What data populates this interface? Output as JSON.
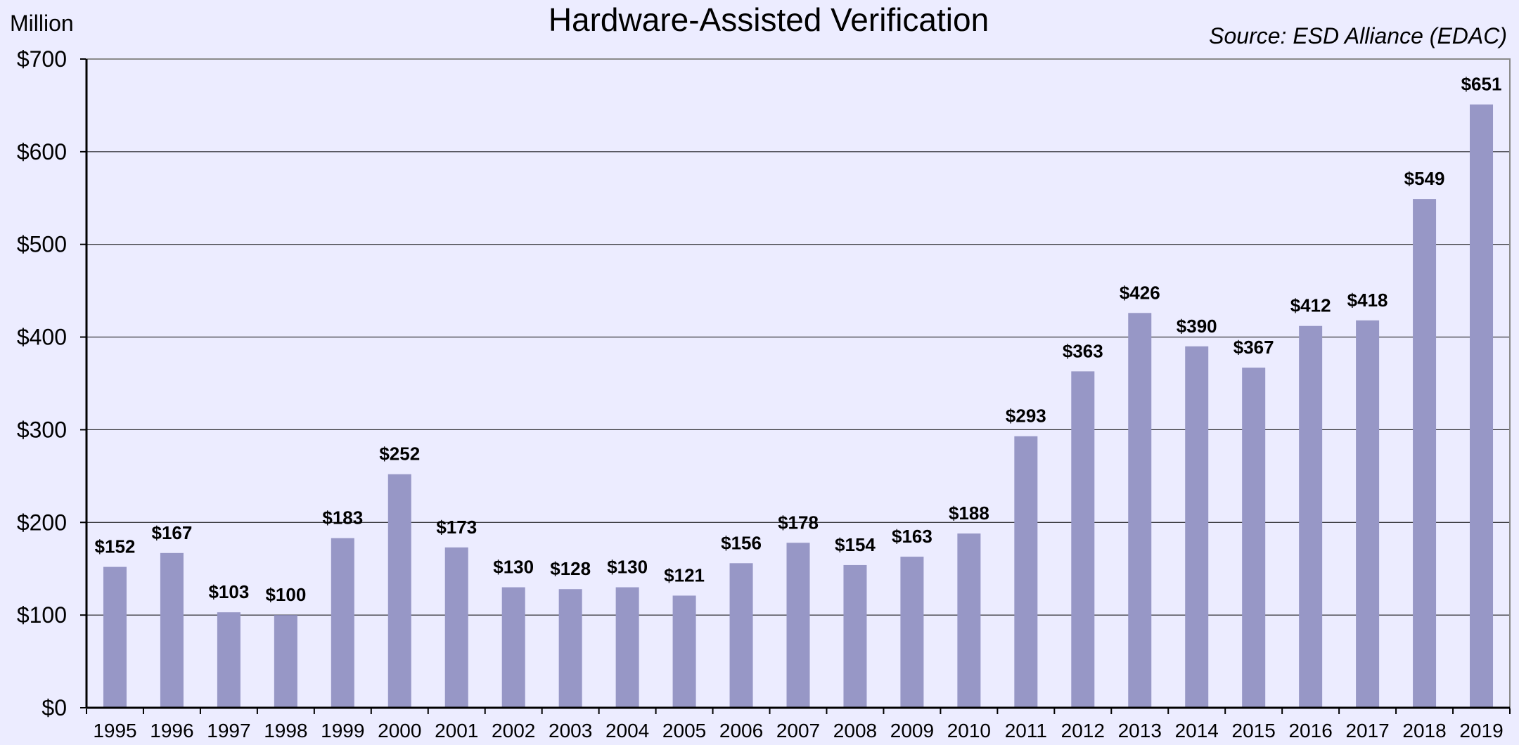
{
  "chart_data": {
    "type": "bar",
    "title": "Hardware-Assisted Verification",
    "source": "Source: ESD Alliance (EDAC)",
    "unit_label": "Million",
    "xlabel": "",
    "ylabel": "",
    "ylim": [
      0,
      700
    ],
    "y_ticks": [
      0,
      100,
      200,
      300,
      400,
      500,
      600,
      700
    ],
    "y_tick_labels": [
      "$0",
      "$100",
      "$200",
      "$300",
      "$400",
      "$500",
      "$600",
      "$700"
    ],
    "grid": true,
    "legend": "none",
    "bar_color": "#9797c6",
    "categories": [
      "1995",
      "1996",
      "1997",
      "1998",
      "1999",
      "2000",
      "2001",
      "2002",
      "2003",
      "2004",
      "2005",
      "2006",
      "2007",
      "2008",
      "2009",
      "2010",
      "2011",
      "2012",
      "2013",
      "2014",
      "2015",
      "2016",
      "2017",
      "2018",
      "2019"
    ],
    "values": [
      152,
      167,
      103,
      100,
      183,
      252,
      173,
      130,
      128,
      130,
      121,
      156,
      178,
      154,
      163,
      188,
      293,
      363,
      426,
      390,
      367,
      412,
      418,
      549,
      651
    ],
    "data_labels": [
      "$152",
      "$167",
      "$103",
      "$100",
      "$183",
      "$252",
      "$173",
      "$130",
      "$128",
      "$130",
      "$121",
      "$156",
      "$178",
      "$154",
      "$163",
      "$188",
      "$293",
      "$363",
      "$426",
      "$390",
      "$367",
      "$412",
      "$418",
      "$549",
      "$651"
    ]
  }
}
